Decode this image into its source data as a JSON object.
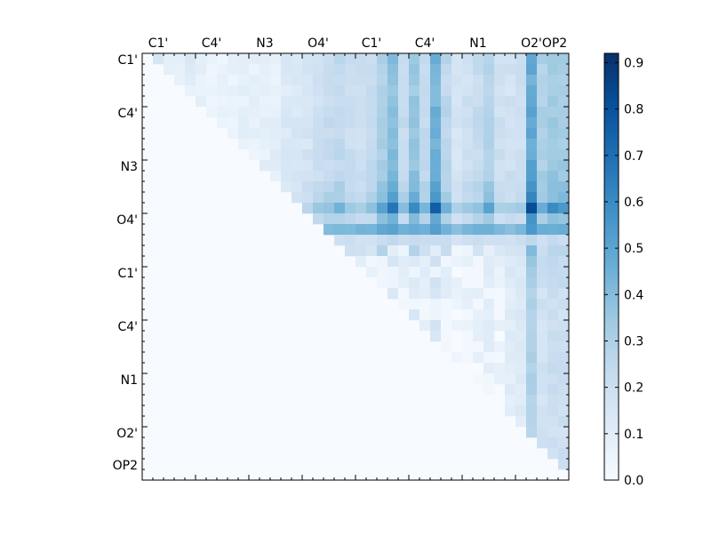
{
  "chart_data": {
    "type": "heatmap",
    "title": "",
    "xlabel": "",
    "ylabel": "",
    "n": 40,
    "x_tick_labels": [
      "C1'",
      "C4'",
      "N3",
      "O4'",
      "C1'",
      "C4'",
      "N1",
      "O2'",
      "OP2"
    ],
    "y_tick_labels": [
      "C1'",
      "C4'",
      "N3",
      "O4'",
      "C1'",
      "C4'",
      "N1",
      "O2'",
      "OP2"
    ],
    "x_tick_positions": [
      0,
      5,
      10,
      15,
      20,
      25,
      30,
      35,
      40
    ],
    "y_tick_positions": [
      0,
      5,
      10,
      15,
      20,
      25,
      30,
      35,
      40
    ],
    "colorbar": {
      "range": [
        0.0,
        0.92
      ],
      "ticks": [
        0.0,
        0.1,
        0.2,
        0.3,
        0.4,
        0.5,
        0.6,
        0.7,
        0.8,
        0.9
      ],
      "tick_labels": [
        "0.0",
        "0.1",
        "0.2",
        "0.3",
        "0.4",
        "0.5",
        "0.6",
        "0.7",
        "0.8",
        "0.9"
      ],
      "colormap": "Blues",
      "colors": [
        "#f7fbff",
        "#deebf7",
        "#c6dbef",
        "#9ecae1",
        "#6baed6",
        "#4292c6",
        "#2171b5",
        "#08519c",
        "#08306b"
      ]
    },
    "column_strength": [
      0.25,
      0.22,
      0.15,
      0.12,
      0.16,
      0.12,
      0.08,
      0.09,
      0.1,
      0.12,
      0.12,
      0.12,
      0.14,
      0.2,
      0.22,
      0.25,
      0.3,
      0.35,
      0.38,
      0.32,
      0.3,
      0.35,
      0.48,
      0.62,
      0.35,
      0.55,
      0.38,
      0.68,
      0.4,
      0.25,
      0.3,
      0.35,
      0.45,
      0.3,
      0.28,
      0.32,
      0.75,
      0.45,
      0.52,
      0.5
    ],
    "row_strength": [
      0.3,
      0.3,
      0.25,
      0.25,
      0.28,
      0.3,
      0.3,
      0.3,
      0.28,
      0.3,
      0.32,
      0.35,
      0.4,
      0.45,
      0.75,
      0.4,
      0.5,
      0.4,
      0.18,
      0.1,
      0.08,
      0.08,
      0.05,
      0.05,
      0.05,
      0.05,
      0.05,
      0.05,
      0.05,
      0.05,
      0.04,
      0.04,
      0.04,
      0.04,
      0.04,
      0.03,
      0.03,
      0.02,
      0.02,
      0.0
    ],
    "special_rows": [
      {
        "row": 16,
        "value_scale": 1.0,
        "base": 0.5
      },
      {
        "row": 17,
        "value_scale": 0.6,
        "base": 0.35
      }
    ]
  }
}
